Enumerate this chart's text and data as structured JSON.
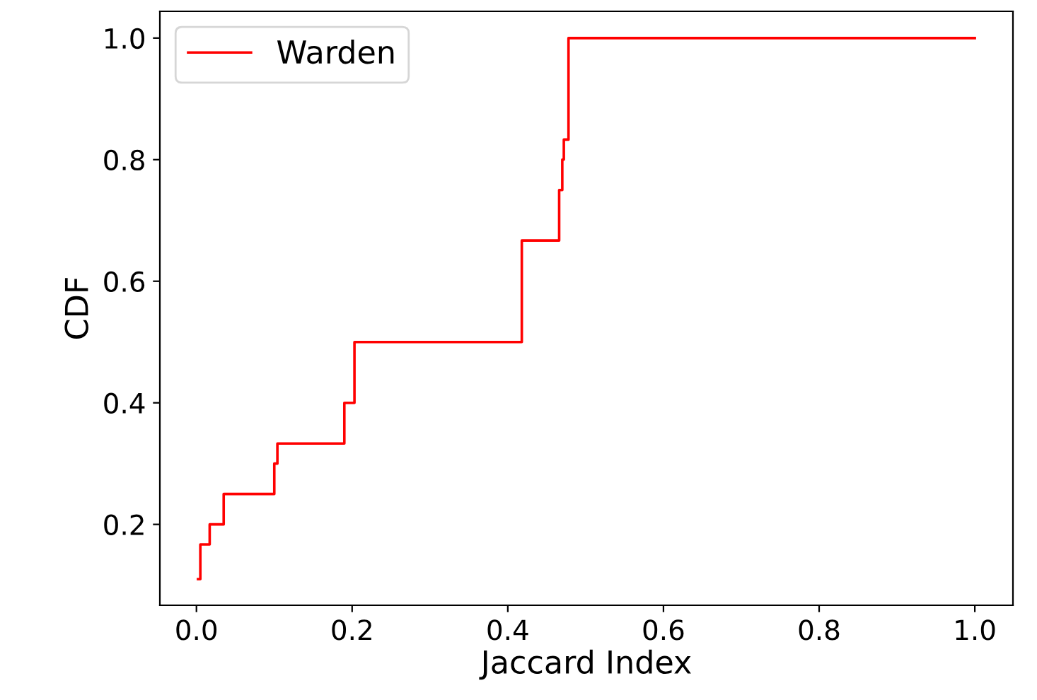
{
  "chart_data": {
    "type": "step",
    "xlabel": "Jaccard Index",
    "ylabel": "CDF",
    "series": [
      {
        "name": "Warden",
        "color": "#ff0000",
        "x": [
          0.002,
          0.005,
          0.017,
          0.035,
          0.1,
          0.104,
          0.19,
          0.203,
          0.418,
          0.466,
          0.47,
          0.472,
          0.478,
          1.0
        ],
        "values": [
          0.11,
          0.167,
          0.2,
          0.25,
          0.3,
          0.333,
          0.4,
          0.5,
          0.667,
          0.75,
          0.8,
          0.833,
          1.0,
          1.0
        ]
      }
    ],
    "xlim": [
      -0.047,
      1.049
    ],
    "xticks": [
      {
        "value": 0.0,
        "label": "0.0"
      },
      {
        "value": 0.2,
        "label": "0.2"
      },
      {
        "value": 0.4,
        "label": "0.4"
      },
      {
        "value": 0.6,
        "label": "0.6"
      },
      {
        "value": 0.8,
        "label": "0.8"
      },
      {
        "value": 1.0,
        "label": "1.0"
      }
    ],
    "ylim": [
      0.067,
      1.044
    ],
    "yticks": [
      {
        "value": 0.2,
        "label": "0.2"
      },
      {
        "value": 0.4,
        "label": "0.4"
      },
      {
        "value": 0.6,
        "label": "0.6"
      },
      {
        "value": 0.8,
        "label": "0.8"
      },
      {
        "value": 1.0,
        "label": "1.0"
      }
    ],
    "grid": false,
    "legend": "top left"
  }
}
